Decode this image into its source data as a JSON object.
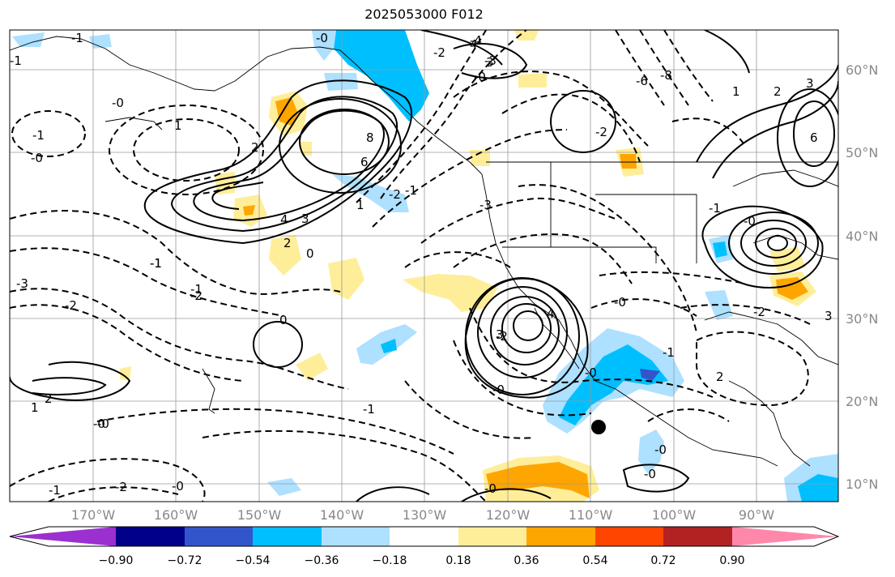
{
  "title": "2025053000 F012",
  "latitude_labels": [
    "60°N",
    "50°N",
    "40°N",
    "30°N",
    "20°N",
    "10°N"
  ],
  "longitude_labels": [
    "170°W",
    "160°W",
    "150°W",
    "140°W",
    "130°W",
    "120°W",
    "110°W",
    "100°W",
    "90°W"
  ],
  "colorbar": {
    "ticks": [
      "−0.90",
      "−0.72",
      "−0.54",
      "−0.36",
      "−0.18",
      "0.18",
      "0.36",
      "0.54",
      "0.72",
      "0.90"
    ],
    "colors": [
      "#9b30d0",
      "#000088",
      "#3355cc",
      "#00bfff",
      "#aee0ff",
      "#ffffff",
      "#ffee99",
      "#ffa500",
      "#ff4500",
      "#b22222",
      "#ff88aa"
    ]
  },
  "contour_labels": [
    "-3",
    "-1",
    "-0",
    "-1",
    "1",
    "-1",
    "-0",
    "-1",
    "-2",
    "-0",
    "-2",
    "2",
    "-0",
    "-4",
    "-3",
    "-2",
    "-6",
    "-8",
    "-2",
    "-1",
    "-0",
    "4",
    "3",
    "2",
    "1",
    "0",
    "-2",
    "-2",
    "2",
    "3",
    "4",
    "6",
    "8",
    "-3",
    "-1",
    "-0",
    "0",
    "-1",
    "-0",
    "-0",
    "-1",
    "-2",
    "-0",
    "3",
    "4",
    "3",
    "-0",
    "-1",
    "-0",
    "-0",
    "-1",
    "-0",
    "1",
    "2",
    "-2",
    "-1",
    "-0",
    "1",
    "2",
    "3",
    "6"
  ],
  "marker": "storm-center-dot"
}
